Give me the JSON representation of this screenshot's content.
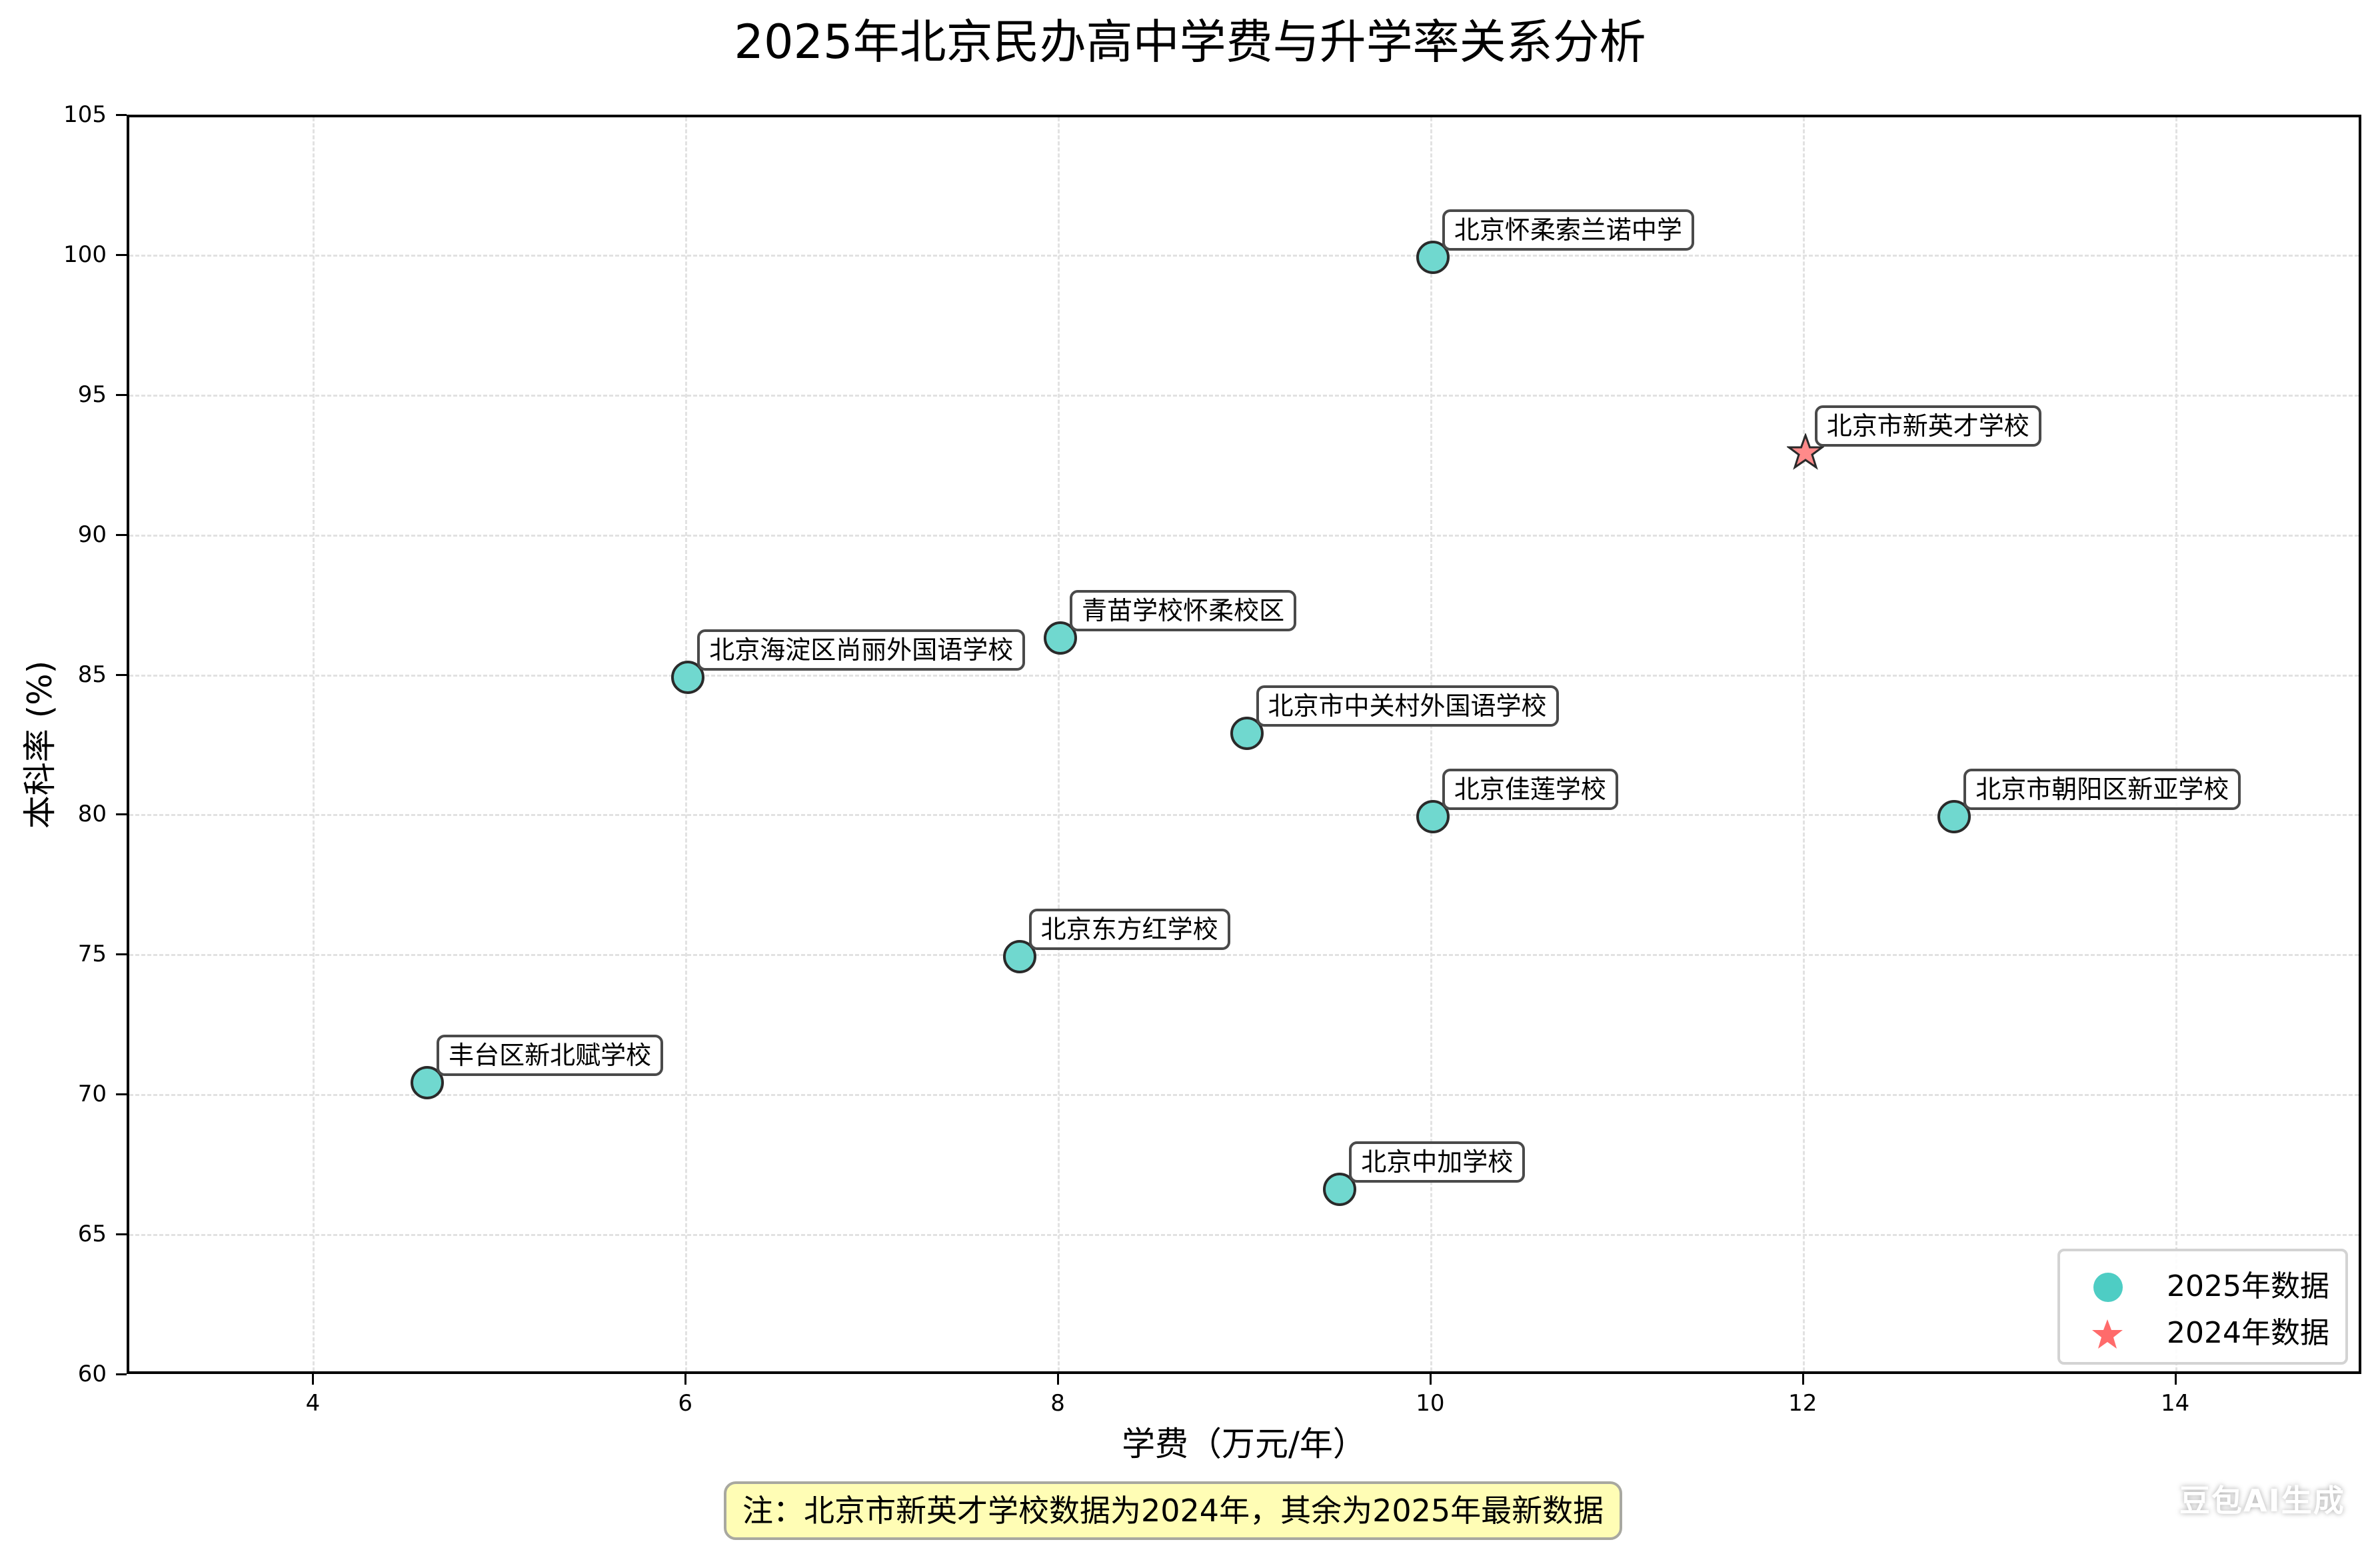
{
  "chart_data": {
    "type": "scatter",
    "title": "2025年北京民办高中学费与升学率关系分析",
    "xlabel": "学费（万元/年）",
    "ylabel": "本科率 (%)",
    "xlim": [
      3,
      15
    ],
    "ylim": [
      60,
      105
    ],
    "xticks": [
      "4",
      "6",
      "8",
      "10",
      "12",
      "14"
    ],
    "yticks": [
      "60",
      "65",
      "70",
      "75",
      "80",
      "85",
      "90",
      "95",
      "100",
      "105"
    ],
    "grid": true,
    "legend_position": "lower right",
    "series": [
      {
        "name": "2025年数据",
        "marker": "circle",
        "color": "#4ecdc4",
        "points": [
          {
            "label": "北京怀柔索兰诺中学",
            "x": 10,
            "y": 100
          },
          {
            "label": "青苗学校怀柔校区",
            "x": 8,
            "y": 86.4
          },
          {
            "label": "北京海淀区尚丽外国语学校",
            "x": 6,
            "y": 85
          },
          {
            "label": "北京市中关村外国语学校",
            "x": 9,
            "y": 83
          },
          {
            "label": "北京佳莲学校",
            "x": 10,
            "y": 80
          },
          {
            "label": "北京市朝阳区新亚学校",
            "x": 12.8,
            "y": 80
          },
          {
            "label": "北京东方红学校",
            "x": 7.78,
            "y": 75
          },
          {
            "label": "丰台区新北赋学校",
            "x": 4.6,
            "y": 70.5
          },
          {
            "label": "北京中加学校",
            "x": 9.5,
            "y": 66.7
          }
        ]
      },
      {
        "name": "2024年数据",
        "marker": "star",
        "color": "#ff6b6b",
        "points": [
          {
            "label": "北京市新英才学校",
            "x": 12,
            "y": 93
          }
        ]
      }
    ],
    "annotation_note": "注：北京市新英才学校数据为2024年，其余为2025年最新数据"
  },
  "legend": {
    "items": [
      {
        "label": "2025年数据"
      },
      {
        "label": "2024年数据"
      }
    ]
  },
  "watermark": "豆包AI生成"
}
